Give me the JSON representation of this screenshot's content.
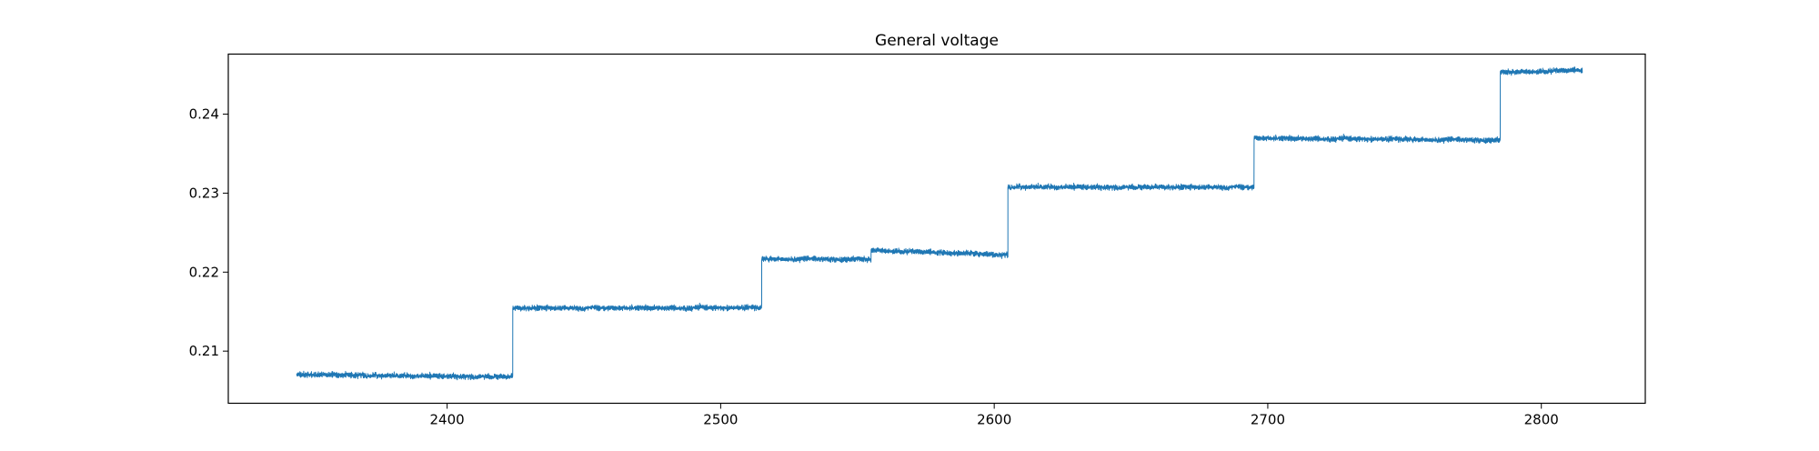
{
  "chart_data": {
    "type": "line",
    "title": "General voltage",
    "xlabel": "",
    "ylabel": "",
    "xlim": [
      2320,
      2838
    ],
    "ylim": [
      0.2034,
      0.2476
    ],
    "x_ticks": [
      2400,
      2500,
      2600,
      2700,
      2800
    ],
    "y_ticks": [
      0.21,
      0.22,
      0.23,
      0.24
    ],
    "grid": false,
    "series": [
      {
        "color": "#1f77b4",
        "x_range": [
          2345,
          2815
        ],
        "noise_amplitude": 0.0006,
        "segments": [
          {
            "x_start": 2345,
            "x_end": 2424,
            "y_start": 0.207,
            "y_end": 0.2068
          },
          {
            "x_start": 2424,
            "x_end": 2515,
            "y_start": 0.2155,
            "y_end": 0.2155
          },
          {
            "x_start": 2515,
            "x_end": 2555,
            "y_start": 0.2217,
            "y_end": 0.2216
          },
          {
            "x_start": 2555,
            "x_end": 2605,
            "y_start": 0.2228,
            "y_end": 0.2222
          },
          {
            "x_start": 2605,
            "x_end": 2695,
            "y_start": 0.2308,
            "y_end": 0.2308
          },
          {
            "x_start": 2695,
            "x_end": 2785,
            "y_start": 0.237,
            "y_end": 0.2367
          },
          {
            "x_start": 2785,
            "x_end": 2815,
            "y_start": 0.2453,
            "y_end": 0.2456
          }
        ]
      }
    ]
  }
}
